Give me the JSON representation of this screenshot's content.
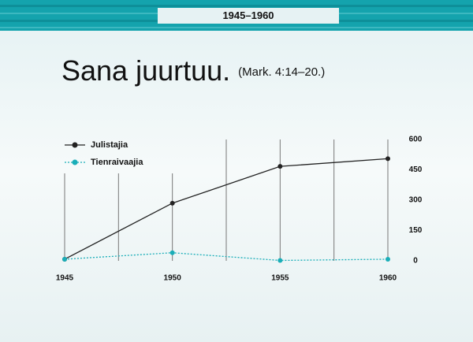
{
  "header": {
    "title": "1945–1960"
  },
  "slide": {
    "title": "Sana juurtuu.",
    "reference": "(Mark.  4:14–20.)"
  },
  "chart_data": {
    "type": "line",
    "x": [
      1945,
      1950,
      1955,
      1960
    ],
    "xlim": [
      1945,
      1960
    ],
    "xticks": [
      1945,
      1950,
      1955,
      1960
    ],
    "ylim": [
      0,
      600
    ],
    "yticks": [
      0,
      150,
      300,
      450,
      600
    ],
    "legend": "top-left",
    "series": [
      {
        "name": "Julistajia",
        "color": "#222222",
        "line_style": "solid",
        "values": [
          8,
          285,
          467,
          505
        ]
      },
      {
        "name": "Tienraivaajia",
        "color": "#1aaeb8",
        "line_style": "dotted",
        "values": [
          8,
          40,
          2,
          8
        ]
      }
    ]
  }
}
